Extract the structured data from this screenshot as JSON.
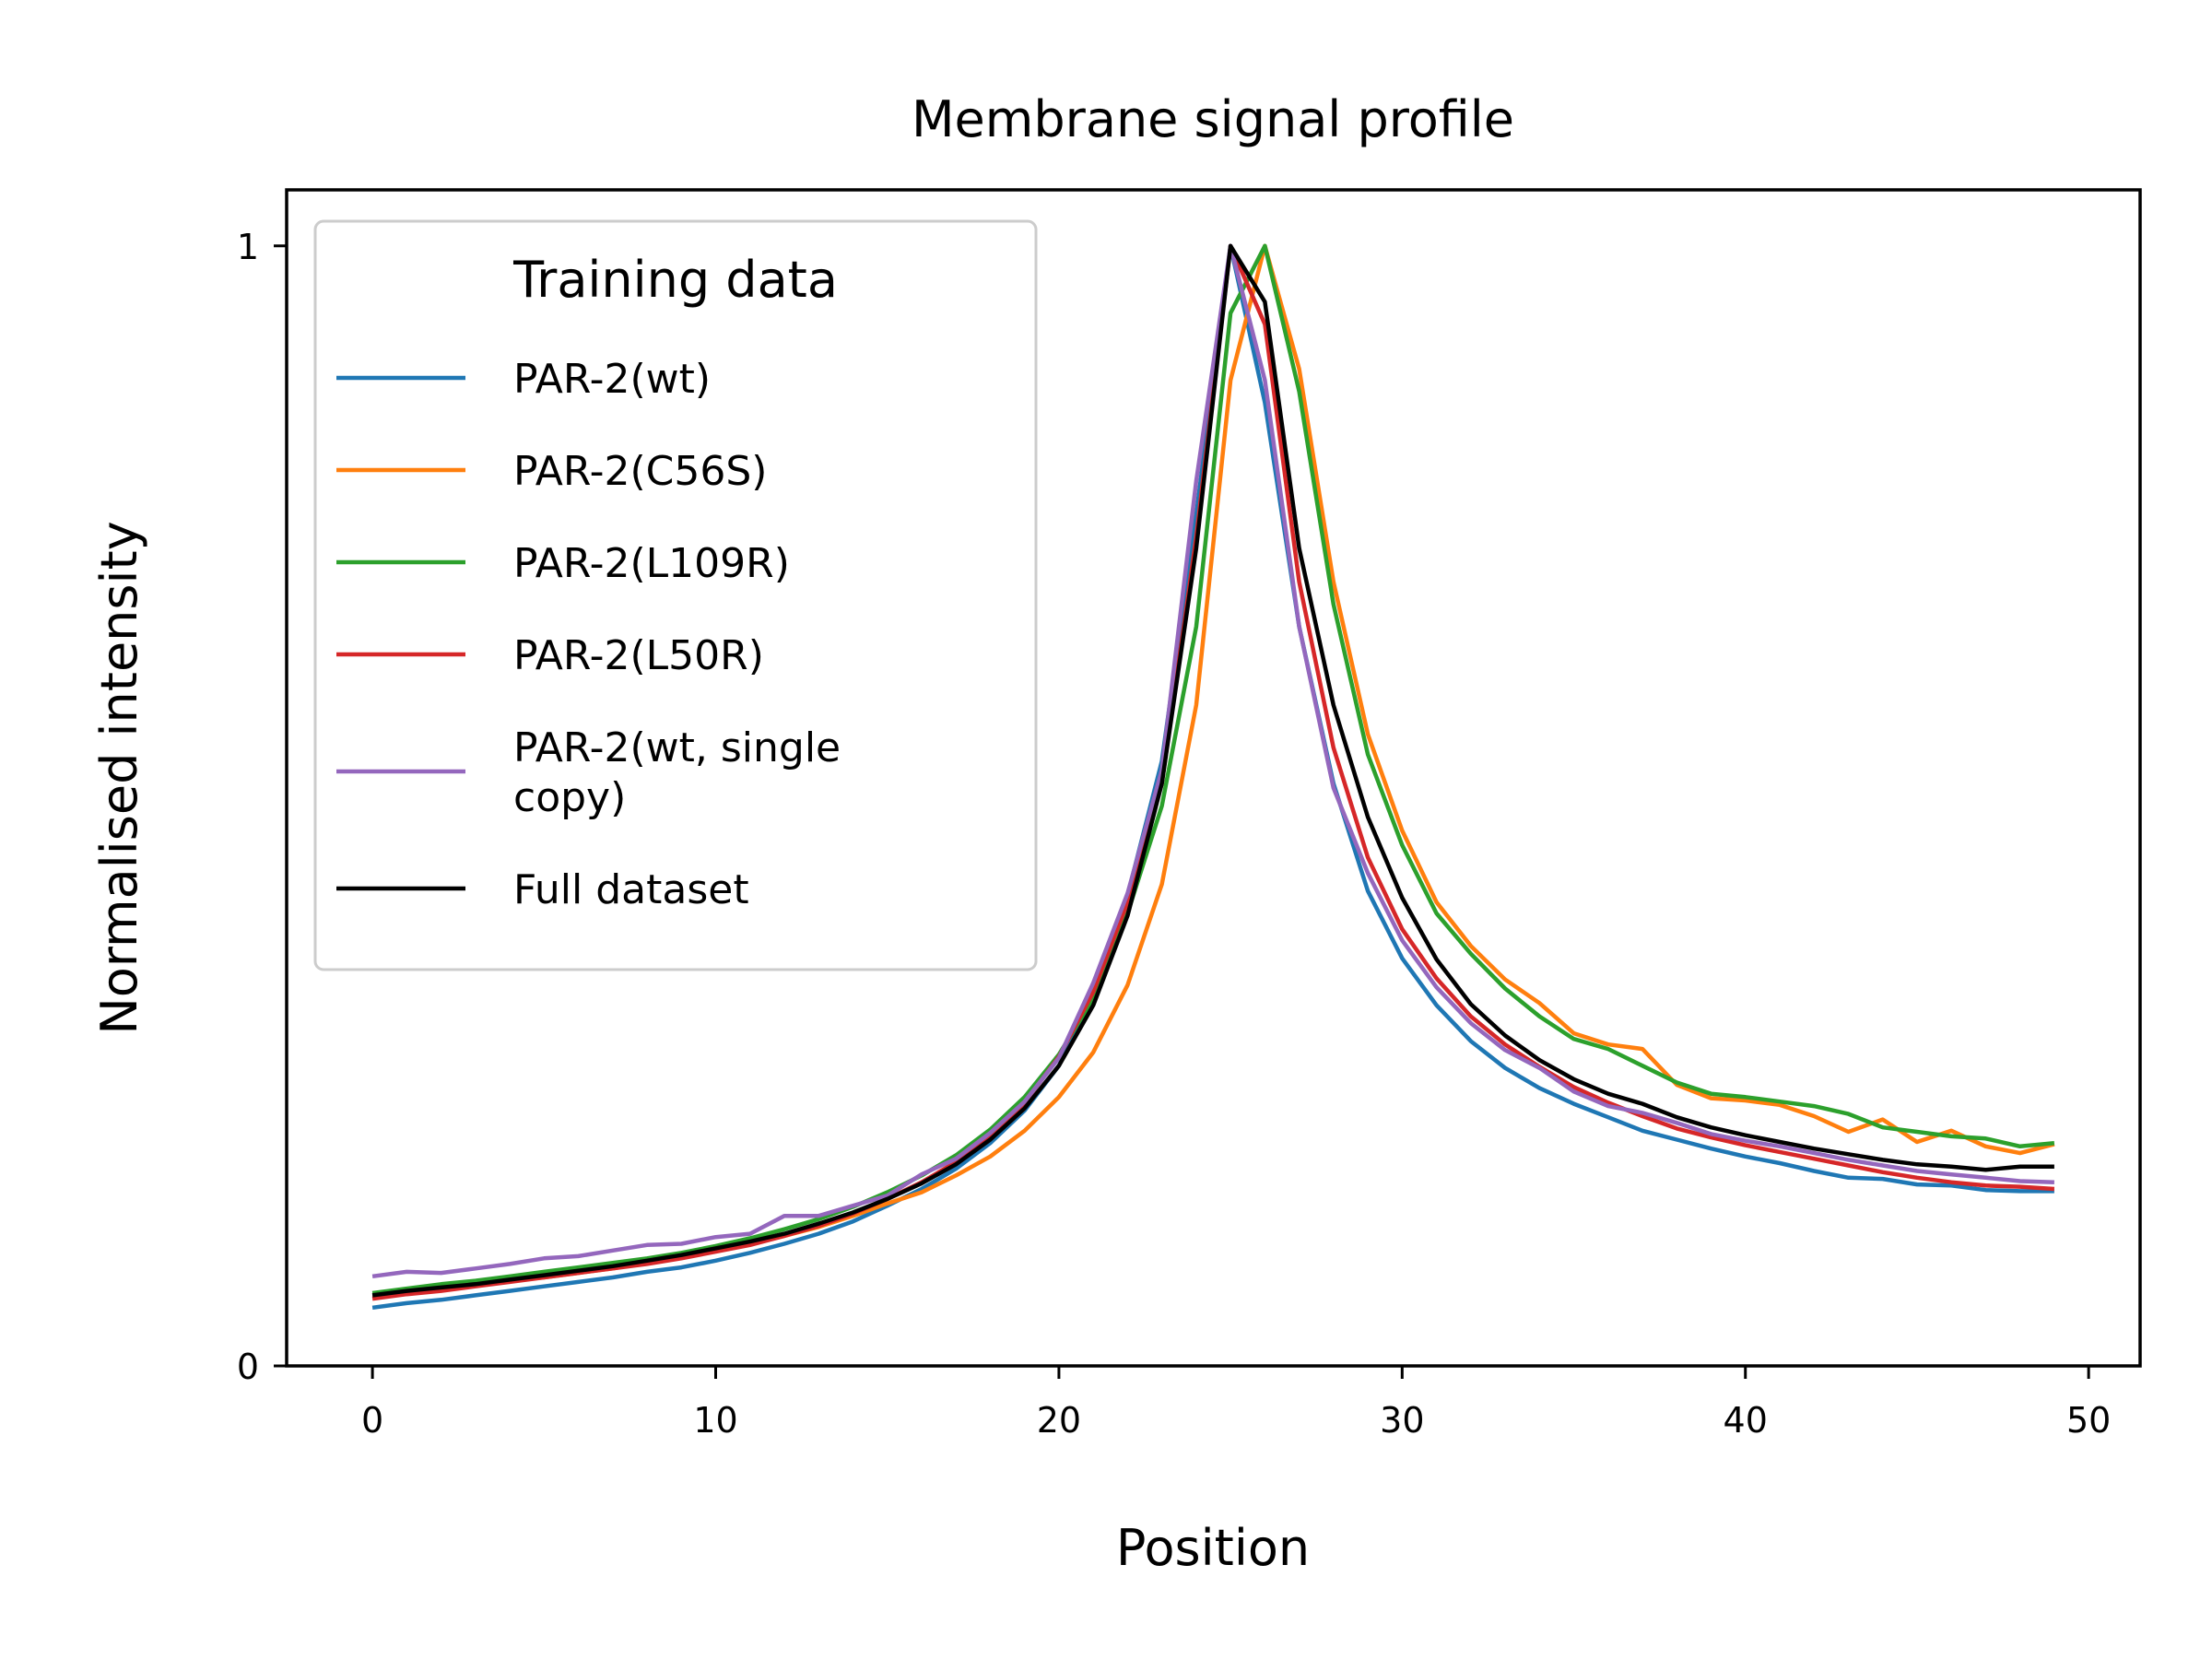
{
  "chart_data": {
    "type": "line",
    "title": "Membrane signal profile",
    "xlabel": "Position",
    "ylabel": "Normalised intensity",
    "xlim": [
      -2.5,
      51.5
    ],
    "ylim": [
      0,
      1.05
    ],
    "xticks": [
      0,
      10,
      20,
      30,
      40,
      50
    ],
    "yticks": [
      0,
      1
    ],
    "xtick_labels": [
      "0",
      "10",
      "20",
      "30",
      "40",
      "50"
    ],
    "ytick_labels": [
      "0",
      "1"
    ],
    "grid": false,
    "legend": {
      "title": "Training data",
      "placement": "top-left"
    },
    "x": [
      0,
      1,
      2,
      3,
      4,
      5,
      6,
      7,
      8,
      9,
      10,
      11,
      12,
      13,
      14,
      15,
      16,
      17,
      18,
      19,
      20,
      21,
      22,
      23,
      24,
      25,
      26,
      27,
      28,
      29,
      30,
      31,
      32,
      33,
      34,
      35,
      36,
      37,
      38,
      39,
      40,
      41,
      42,
      43,
      44,
      45,
      46,
      47,
      48,
      49
    ],
    "series": [
      {
        "name": "PAR-2(wt)",
        "color": "#1f77b4",
        "values": [
          0.052,
          0.056,
          0.059,
          0.063,
          0.067,
          0.071,
          0.075,
          0.079,
          0.084,
          0.088,
          0.094,
          0.101,
          0.109,
          0.118,
          0.129,
          0.143,
          0.158,
          0.176,
          0.199,
          0.228,
          0.268,
          0.33,
          0.42,
          0.54,
          0.76,
          1.0,
          0.86,
          0.66,
          0.52,
          0.424,
          0.364,
          0.322,
          0.29,
          0.266,
          0.248,
          0.234,
          0.222,
          0.21,
          0.202,
          0.194,
          0.187,
          0.181,
          0.174,
          0.168,
          0.167,
          0.162,
          0.161,
          0.157,
          0.156,
          0.156
        ]
      },
      {
        "name": "PAR-2(C56S)",
        "color": "#ff7f0e",
        "values": [
          0.063,
          0.066,
          0.069,
          0.072,
          0.076,
          0.079,
          0.083,
          0.087,
          0.092,
          0.097,
          0.103,
          0.109,
          0.116,
          0.124,
          0.134,
          0.145,
          0.155,
          0.17,
          0.187,
          0.21,
          0.24,
          0.28,
          0.34,
          0.43,
          0.59,
          0.88,
          1.0,
          0.89,
          0.7,
          0.564,
          0.478,
          0.414,
          0.375,
          0.345,
          0.324,
          0.297,
          0.287,
          0.283,
          0.251,
          0.239,
          0.237,
          0.233,
          0.223,
          0.209,
          0.22,
          0.2,
          0.21,
          0.196,
          0.19,
          0.198
        ]
      },
      {
        "name": "PAR-2(L109R)",
        "color": "#2ca02c",
        "values": [
          0.065,
          0.069,
          0.073,
          0.076,
          0.08,
          0.084,
          0.088,
          0.092,
          0.096,
          0.101,
          0.107,
          0.114,
          0.122,
          0.131,
          0.142,
          0.155,
          0.17,
          0.188,
          0.211,
          0.24,
          0.278,
          0.328,
          0.404,
          0.5,
          0.66,
          0.94,
          1.0,
          0.87,
          0.68,
          0.546,
          0.465,
          0.404,
          0.368,
          0.337,
          0.312,
          0.292,
          0.283,
          0.268,
          0.253,
          0.243,
          0.24,
          0.236,
          0.232,
          0.225,
          0.213,
          0.209,
          0.205,
          0.203,
          0.196,
          0.199
        ]
      },
      {
        "name": "PAR-2(L50R)",
        "color": "#d62728",
        "values": [
          0.06,
          0.064,
          0.067,
          0.071,
          0.075,
          0.079,
          0.083,
          0.087,
          0.091,
          0.096,
          0.102,
          0.108,
          0.116,
          0.125,
          0.136,
          0.149,
          0.164,
          0.182,
          0.205,
          0.235,
          0.276,
          0.334,
          0.414,
          0.52,
          0.74,
          1.0,
          0.93,
          0.7,
          0.552,
          0.454,
          0.39,
          0.346,
          0.312,
          0.287,
          0.267,
          0.249,
          0.235,
          0.223,
          0.212,
          0.204,
          0.197,
          0.191,
          0.185,
          0.179,
          0.173,
          0.168,
          0.164,
          0.161,
          0.16,
          0.158
        ]
      },
      {
        "name": "PAR-2(wt, single copy)",
        "color": "#9467bd",
        "values": [
          0.08,
          0.084,
          0.083,
          0.087,
          0.091,
          0.096,
          0.098,
          0.103,
          0.108,
          0.109,
          0.115,
          0.118,
          0.134,
          0.134,
          0.143,
          0.152,
          0.171,
          0.185,
          0.208,
          0.236,
          0.275,
          0.342,
          0.422,
          0.532,
          0.79,
          1.0,
          0.88,
          0.66,
          0.516,
          0.44,
          0.38,
          0.338,
          0.306,
          0.282,
          0.266,
          0.245,
          0.232,
          0.226,
          0.217,
          0.207,
          0.201,
          0.196,
          0.19,
          0.184,
          0.179,
          0.174,
          0.171,
          0.168,
          0.165,
          0.164
        ]
      },
      {
        "name": "Full dataset",
        "color": "#000000",
        "values": [
          0.063,
          0.067,
          0.07,
          0.073,
          0.077,
          0.081,
          0.085,
          0.089,
          0.094,
          0.099,
          0.105,
          0.111,
          0.118,
          0.127,
          0.137,
          0.149,
          0.163,
          0.18,
          0.202,
          0.23,
          0.268,
          0.322,
          0.402,
          0.52,
          0.73,
          1.0,
          0.95,
          0.73,
          0.59,
          0.49,
          0.418,
          0.363,
          0.323,
          0.295,
          0.273,
          0.256,
          0.243,
          0.234,
          0.222,
          0.213,
          0.206,
          0.2,
          0.194,
          0.189,
          0.184,
          0.18,
          0.178,
          0.175,
          0.178,
          0.178
        ]
      }
    ]
  }
}
